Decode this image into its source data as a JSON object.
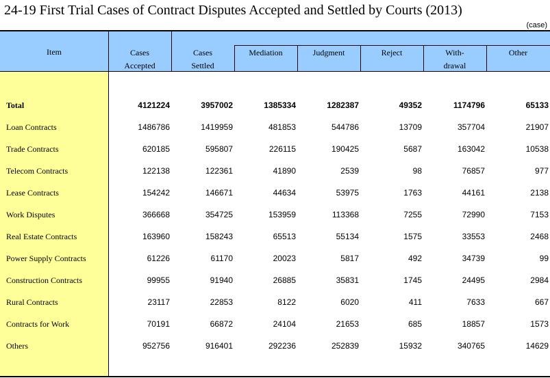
{
  "title": "24-19  First Trial Cases of Contract Disputes Accepted and Settled by Courts (2013)",
  "unit": "(case)",
  "headers": {
    "item": "Item",
    "cases_accepted_1": "Cases",
    "cases_accepted_2": "Accepted",
    "cases_settled_1": "Cases",
    "cases_settled_2": "Settled",
    "mediation": "Mediation",
    "judgment": "Judgment",
    "reject": "Reject",
    "withdrawal_1": "With-",
    "withdrawal_2": "drawal",
    "other": "Other"
  },
  "rows": [
    {
      "label": "Total",
      "values": [
        "4121224",
        "3957002",
        "1385334",
        "1282387",
        "49352",
        "1174796",
        "65133"
      ]
    },
    {
      "label": "Loan Contracts",
      "values": [
        "1486786",
        "1419959",
        "481853",
        "544786",
        "13709",
        "357704",
        "21907"
      ]
    },
    {
      "label": "Trade Contracts",
      "values": [
        "620185",
        "595807",
        "226115",
        "190425",
        "5687",
        "163042",
        "10538"
      ]
    },
    {
      "label": "Telecom Contracts",
      "values": [
        "122138",
        "122361",
        "41890",
        "2539",
        "98",
        "76857",
        "977"
      ]
    },
    {
      "label": "Lease Contracts",
      "values": [
        "154242",
        "146671",
        "44634",
        "53975",
        "1763",
        "44161",
        "2138"
      ]
    },
    {
      "label": "Work Disputes",
      "values": [
        "366668",
        "354725",
        "153959",
        "113368",
        "7255",
        "72990",
        "7153"
      ]
    },
    {
      "label": "Real Estate Contracts",
      "values": [
        "163960",
        "158243",
        "65513",
        "55134",
        "1575",
        "33553",
        "2468"
      ]
    },
    {
      "label": "Power Supply Contracts",
      "values": [
        "61226",
        "61170",
        "20023",
        "5817",
        "492",
        "34739",
        "99"
      ]
    },
    {
      "label": "Construction Contracts",
      "values": [
        "99955",
        "91940",
        "26885",
        "35831",
        "1745",
        "24495",
        "2984"
      ]
    },
    {
      "label": "Rural Contracts",
      "values": [
        "23117",
        "22853",
        "8122",
        "6020",
        "411",
        "7633",
        "667"
      ]
    },
    {
      "label": "Contracts for Work",
      "values": [
        "70191",
        "66872",
        "24104",
        "21653",
        "685",
        "18857",
        "1573"
      ]
    },
    {
      "label": "Others",
      "values": [
        "952756",
        "916401",
        "292236",
        "252839",
        "15932",
        "340765",
        "14629"
      ]
    }
  ],
  "colors": {
    "header_bg": "#99ccff",
    "item_col_bg": "#ffff99"
  }
}
